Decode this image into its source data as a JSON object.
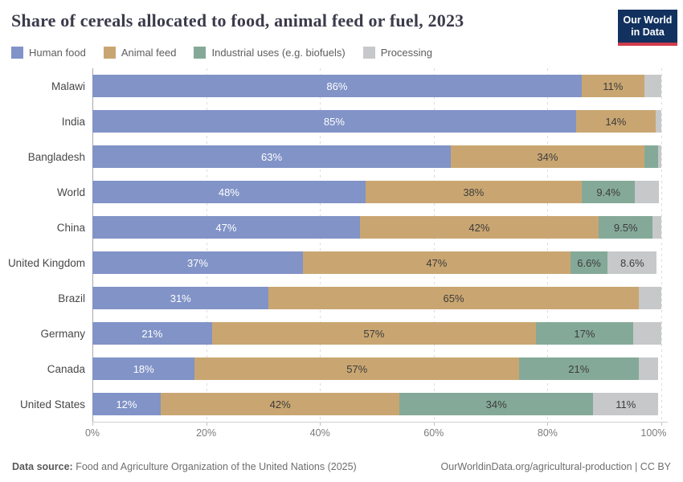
{
  "header": {
    "title": "Share of cereals allocated to food, animal feed or fuel, 2023",
    "logo": {
      "line1": "Our World",
      "line2": "in Data"
    }
  },
  "legend": [
    {
      "label": "Human food",
      "color": "#8193c7"
    },
    {
      "label": "Animal feed",
      "color": "#c9a671"
    },
    {
      "label": "Industrial uses (e.g. biofuels)",
      "color": "#85a998"
    },
    {
      "label": "Processing",
      "color": "#c6c8c9"
    }
  ],
  "chart_data": {
    "type": "bar",
    "orientation": "horizontal",
    "stacked": true,
    "title": "Share of cereals allocated to food, animal feed or fuel, 2023",
    "unit": "%",
    "xlim": [
      0,
      100
    ],
    "grid": "dashed-vertical",
    "x_tick_values": [
      0,
      20,
      40,
      60,
      80,
      100
    ],
    "x_tick_labels": [
      "0%",
      "20%",
      "40%",
      "60%",
      "80%",
      "100%"
    ],
    "categories": [
      "Malawi",
      "India",
      "Bangladesh",
      "World",
      "China",
      "United Kingdom",
      "Brazil",
      "Germany",
      "Canada",
      "United States"
    ],
    "series": [
      {
        "name": "Human food",
        "color": "#8193c7",
        "label_color": "#ffffff",
        "values": [
          86,
          85,
          63,
          48,
          47,
          37,
          31,
          21,
          18,
          12
        ],
        "labels": [
          "86%",
          "85%",
          "63%",
          "48%",
          "47%",
          "37%",
          "31%",
          "21%",
          "18%",
          "12%"
        ]
      },
      {
        "name": "Animal feed",
        "color": "#c9a671",
        "label_color": "#3c3c3c",
        "values": [
          11,
          14,
          34,
          38,
          42,
          47,
          65,
          57,
          57,
          42
        ],
        "labels": [
          "11%",
          "14%",
          "34%",
          "38%",
          "42%",
          "47%",
          "65%",
          "57%",
          "57%",
          "42%"
        ]
      },
      {
        "name": "Industrial uses (e.g. biofuels)",
        "color": "#85a998",
        "label_color": "#3c3c3c",
        "values": [
          0,
          0,
          2.5,
          9.4,
          9.5,
          6.6,
          0,
          17,
          21,
          34
        ],
        "labels": [
          "",
          "",
          "",
          "9.4%",
          "9.5%",
          "6.6%",
          "",
          "17%",
          "21%",
          "34%"
        ]
      },
      {
        "name": "Processing",
        "color": "#c6c8c9",
        "label_color": "#3c3c3c",
        "values": [
          3,
          1,
          0.5,
          4.2,
          1.5,
          8.6,
          4,
          5,
          3.5,
          11.5
        ],
        "labels": [
          "",
          "",
          "",
          "",
          "",
          "8.6%",
          "",
          "",
          "",
          "11%"
        ]
      }
    ],
    "legend_position": "top"
  },
  "footer": {
    "source_label": "Data source:",
    "source_text": " Food and Agriculture Organization of the United Nations (2025)",
    "link_text": "OurWorldinData.org/agricultural-production | CC BY"
  }
}
